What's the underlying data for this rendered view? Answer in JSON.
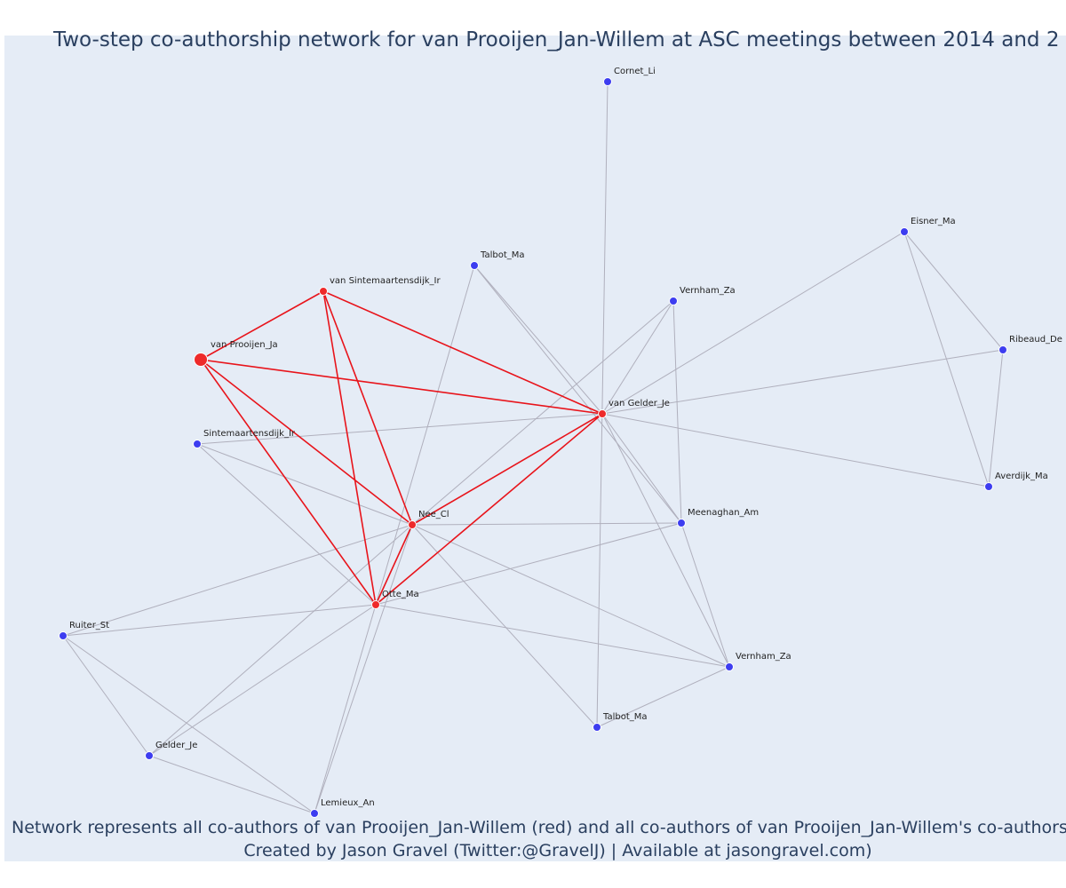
{
  "title": "Two-step co-authorship network for van Prooijen_Jan-Willem at ASC meetings between 2014 and 2",
  "nodes": [
    {
      "label": "van Prooijen_Ja"
    },
    {
      "label": "van Sintemaartensdijk_Ir"
    },
    {
      "label": "van Gelder_Je"
    },
    {
      "label": "Nee_Cl"
    },
    {
      "label": "Otte_Ma"
    },
    {
      "label": "Cornet_Li"
    },
    {
      "label": "Talbot_Ma"
    },
    {
      "label": "Vernham_Za"
    },
    {
      "label": "Eisner_Ma"
    },
    {
      "label": "Ribeaud_De"
    },
    {
      "label": "Averdijk_Ma"
    },
    {
      "label": "Sintemaartensdijk_Ir"
    },
    {
      "label": "Meenaghan_Am"
    },
    {
      "label": "Ruiter_St"
    },
    {
      "label": "Vernham_Za"
    },
    {
      "label": "Talbot_Ma"
    },
    {
      "label": "Gelder_Je"
    },
    {
      "label": "Lemieux_An"
    }
  ],
  "footer": [
    "Network represents all co-authors of van Prooijen_Jan-Willem (red) and all co-authors of van Prooijen_Jan-Willem's co-authors (b",
    "Created by Jason Gravel (Twitter:@GravelJ) | Available at jasongravel.com)"
  ]
}
